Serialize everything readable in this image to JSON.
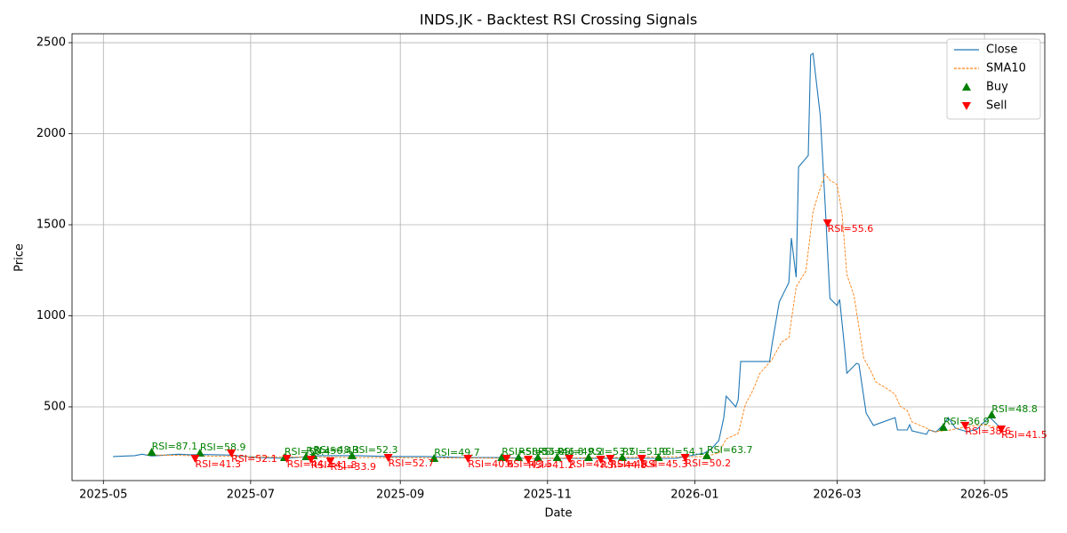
{
  "chart_data": {
    "type": "line",
    "title": "INDS.JK - Backtest RSI Crossing Signals",
    "xlabel": "Date",
    "ylabel": "Price",
    "grid": true,
    "legend": "upper right",
    "xlim": [
      20196,
      20599
    ],
    "ylim": [
      95,
      2549
    ],
    "xticks": [
      {
        "value": 20209,
        "label": "2025-05"
      },
      {
        "value": 20270,
        "label": "2025-07"
      },
      {
        "value": 20332,
        "label": "2025-09"
      },
      {
        "value": 20393,
        "label": "2025-11"
      },
      {
        "value": 20454,
        "label": "2026-01"
      },
      {
        "value": 20513,
        "label": "2026-03"
      },
      {
        "value": 20574,
        "label": "2026-05"
      }
    ],
    "yticks": [
      500,
      1000,
      1500,
      2000,
      2500
    ],
    "series": [
      {
        "name": "Close",
        "color": "#1f77b4",
        "style": "solid",
        "x": [
          20213,
          20222,
          20225,
          20229,
          20240,
          20245,
          20251,
          20262,
          20273,
          20284,
          20299,
          20314,
          20328,
          20343,
          20358,
          20373,
          20387,
          20402,
          20417,
          20432,
          20446,
          20458,
          20461,
          20464,
          20466,
          20467,
          20471,
          20472,
          20473,
          20485,
          20486,
          20489,
          20493,
          20494,
          20496,
          20497,
          20501,
          20502,
          20503,
          20506,
          20508,
          20510,
          20513,
          20514,
          20516,
          20517,
          20521,
          20522,
          20525,
          20528,
          20537,
          20538,
          20542,
          20543,
          20544,
          20550,
          20551,
          20554,
          20557,
          20559,
          20562,
          20567,
          20571,
          20576,
          20580
        ],
        "values": [
          227,
          232,
          240,
          230,
          240,
          237,
          238,
          235,
          222,
          217,
          232,
          232,
          227,
          227,
          222,
          222,
          217,
          217,
          217,
          217,
          217,
          246,
          271,
          315,
          441,
          559,
          500,
          539,
          749,
          749,
          841,
          1076,
          1183,
          1427,
          1212,
          1817,
          1880,
          2432,
          2441,
          2100,
          1612,
          1095,
          1056,
          1090,
          832,
          685,
          739,
          734,
          466,
          398,
          441,
          373,
          373,
          402,
          368,
          349,
          373,
          363,
          402,
          441,
          383,
          363,
          378,
          446,
          393
        ]
      },
      {
        "name": "SMA10",
        "color": "#ff7f0e",
        "style": "dashed",
        "x": [
          20227,
          20262,
          20314,
          20387,
          20458,
          20464,
          20467,
          20472,
          20475,
          20478,
          20481,
          20486,
          20490,
          20493,
          20496,
          20500,
          20503,
          20505,
          20508,
          20510,
          20513,
          20515,
          20517,
          20520,
          20524,
          20527,
          20529,
          20535,
          20537,
          20539,
          20542,
          20544,
          20550,
          20553,
          20560,
          20567,
          20574,
          20581
        ],
        "values": [
          237,
          227,
          222,
          217,
          227,
          246,
          324,
          354,
          515,
          588,
          685,
          759,
          856,
          880,
          1159,
          1246,
          1573,
          1661,
          1778,
          1744,
          1720,
          1563,
          1227,
          1110,
          768,
          695,
          637,
          588,
          568,
          505,
          480,
          417,
          383,
          363,
          373,
          393,
          402,
          383
        ]
      },
      {
        "name": "Buy",
        "color": "#008000",
        "style": "marker-up",
        "x": [
          20229,
          20249,
          20284,
          20293,
          20296,
          20312,
          20346,
          20374,
          20381,
          20389,
          20397,
          20410,
          20424,
          20439,
          20459,
          20557,
          20577
        ],
        "values": [
          251,
          246,
          222,
          227,
          232,
          232,
          217,
          222,
          222,
          222,
          222,
          222,
          222,
          222,
          232,
          388,
          456
        ],
        "labels": [
          "RSI=87.1",
          "RSI=58.9",
          "RSI=50.4",
          "RSI=50.4",
          "RSI=48.3",
          "RSI=52.3",
          "RSI=49.7",
          "RSI=58.3",
          "RSI=55.0",
          "RSI=46.8",
          "RSI=49.2",
          "RSI=53.7",
          "RSI=51.9",
          "RSI=54.1",
          "RSI=63.7",
          "RSI=36.9",
          "RSI=48.8"
        ]
      },
      {
        "name": "Sell",
        "color": "#ff0000",
        "style": "marker-down",
        "x": [
          20247,
          20262,
          20285,
          20295,
          20303,
          20327,
          20360,
          20376,
          20385,
          20402,
          20415,
          20419,
          20432,
          20450,
          20509,
          20566,
          20581
        ],
        "values": [
          217,
          246,
          217,
          212,
          203,
          222,
          217,
          217,
          212,
          217,
          212,
          217,
          217,
          222,
          1510,
          398,
          378
        ],
        "labels": [
          "RSI=41.3",
          "RSI=52.1",
          "RSI=44.2",
          "RSI=41.8",
          "RSI=33.9",
          "RSI=52.7",
          "RSI=40.6",
          "RSI=43.5",
          "RSI=41.2",
          "RSI=42.7",
          "RSI=44.8",
          "RSI=46.4",
          "RSI=45.3",
          "RSI=50.2",
          "RSI=55.6",
          "RSI=38.6",
          "RSI=41.5"
        ]
      }
    ]
  }
}
